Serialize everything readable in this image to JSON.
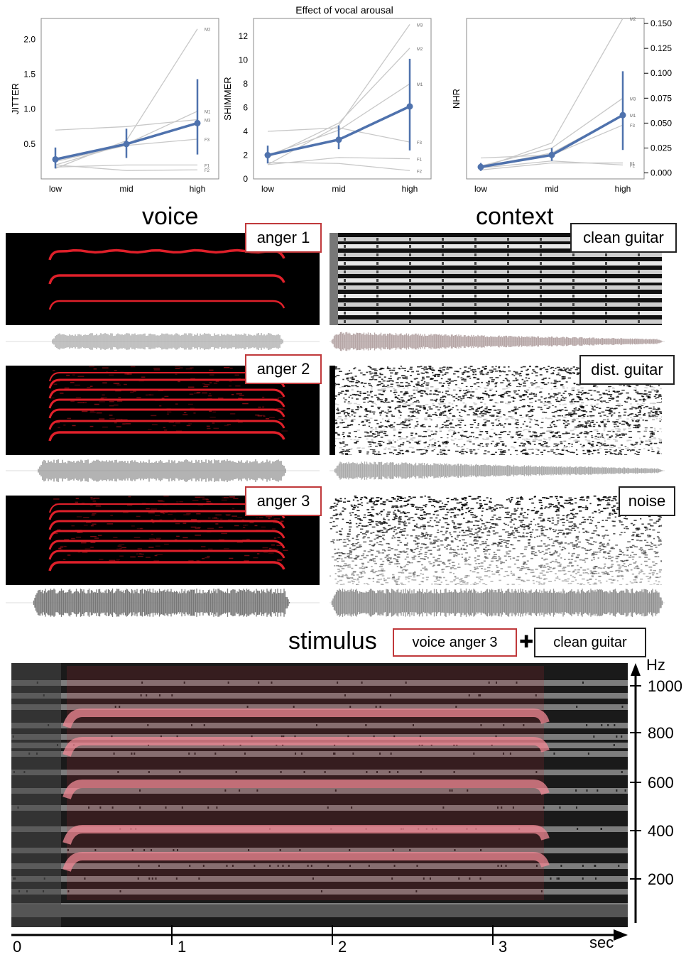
{
  "top_title": "Effect of vocal arousal",
  "chart_data": [
    {
      "type": "line",
      "ylabel": "JITTER",
      "categories": [
        "low",
        "mid",
        "high"
      ],
      "yticks": [
        "0.5",
        "1.0",
        "1.5",
        "2.0"
      ],
      "ylim": [
        0,
        2.3
      ],
      "tick_values": [
        0.5,
        1.0,
        1.5,
        2.0
      ],
      "y_axis_side": "left",
      "mean": [
        0.28,
        0.5,
        0.8
      ],
      "error_low": [
        0.15,
        0.3,
        0.35
      ],
      "error_high": [
        0.45,
        0.72,
        1.43
      ],
      "speakers": [
        {
          "name": "M2",
          "values": [
            0.15,
            0.55,
            2.15
          ]
        },
        {
          "name": "M1",
          "values": [
            0.2,
            0.5,
            0.97
          ]
        },
        {
          "name": "M3",
          "values": [
            0.7,
            0.75,
            0.85
          ]
        },
        {
          "name": "F3",
          "values": [
            0.25,
            0.48,
            0.57
          ]
        },
        {
          "name": "F1",
          "values": [
            0.17,
            0.2,
            0.2
          ]
        },
        {
          "name": "F2",
          "values": [
            0.2,
            0.12,
            0.13
          ]
        }
      ]
    },
    {
      "type": "line",
      "ylabel": "SHIMMER",
      "categories": [
        "low",
        "mid",
        "high"
      ],
      "yticks": [
        "0",
        "2",
        "4",
        "6",
        "8",
        "10",
        "12"
      ],
      "ylim": [
        0,
        13.5
      ],
      "tick_values": [
        0,
        2,
        4,
        6,
        8,
        10,
        12
      ],
      "y_axis_side": "left",
      "mean": [
        2.0,
        3.3,
        6.1
      ],
      "error_low": [
        1.3,
        2.5,
        2.4
      ],
      "error_high": [
        2.8,
        4.5,
        10.1
      ],
      "speakers": [
        {
          "name": "M3",
          "values": [
            1.2,
            4.5,
            13.0
          ]
        },
        {
          "name": "M2",
          "values": [
            1.8,
            4.7,
            11.0
          ]
        },
        {
          "name": "M1",
          "values": [
            2.0,
            4.1,
            8.0
          ]
        },
        {
          "name": "F3",
          "values": [
            4.0,
            4.3,
            3.1
          ]
        },
        {
          "name": "F1",
          "values": [
            1.2,
            1.8,
            1.7
          ]
        },
        {
          "name": "F2",
          "values": [
            1.4,
            1.3,
            0.7
          ]
        }
      ]
    },
    {
      "type": "line",
      "ylabel": "NHR",
      "categories": [
        "low",
        "mid",
        "high"
      ],
      "yticks": [
        "0.000",
        "0.025",
        "0.050",
        "0.075",
        "0.100",
        "0.125",
        "0.150"
      ],
      "ylim": [
        -0.006,
        0.155
      ],
      "tick_values": [
        0.0,
        0.025,
        0.05,
        0.075,
        0.1,
        0.125,
        0.15
      ],
      "y_axis_side": "right",
      "mean": [
        0.006,
        0.018,
        0.058
      ],
      "error_low": [
        0.002,
        0.012,
        0.023
      ],
      "error_high": [
        0.01,
        0.025,
        0.102
      ],
      "speakers": [
        {
          "name": "M2",
          "values": [
            0.005,
            0.03,
            0.155
          ]
        },
        {
          "name": "M3",
          "values": [
            0.007,
            0.025,
            0.075
          ]
        },
        {
          "name": "M1",
          "values": [
            0.006,
            0.02,
            0.058
          ]
        },
        {
          "name": "F3",
          "values": [
            0.015,
            0.018,
            0.048
          ]
        },
        {
          "name": "F1",
          "values": [
            0.003,
            0.01,
            0.01
          ]
        },
        {
          "name": "F2",
          "values": [
            0.005,
            0.012,
            0.008
          ]
        }
      ]
    }
  ],
  "sections": {
    "voice_title": "voice",
    "context_title": "context",
    "voice_labels": [
      "anger 1",
      "anger 2",
      "anger 3"
    ],
    "context_labels": [
      "clean guitar",
      "dist. guitar",
      "noise"
    ]
  },
  "stimulus": {
    "title": "stimulus",
    "voice_label": "voice anger 3",
    "plus": "✚",
    "context_label": "clean guitar",
    "y_unit": "Hz",
    "y_ticks": [
      "200",
      "400",
      "600",
      "800",
      "1000"
    ],
    "x_ticks": [
      "0",
      "1",
      "2",
      "3"
    ],
    "x_unit": "sec"
  },
  "colors": {
    "mean_line": "#4f72ad",
    "speaker_line": "#c8c8c8",
    "voice_harmonic": "#e0202a",
    "label_red": "#c0393b"
  }
}
